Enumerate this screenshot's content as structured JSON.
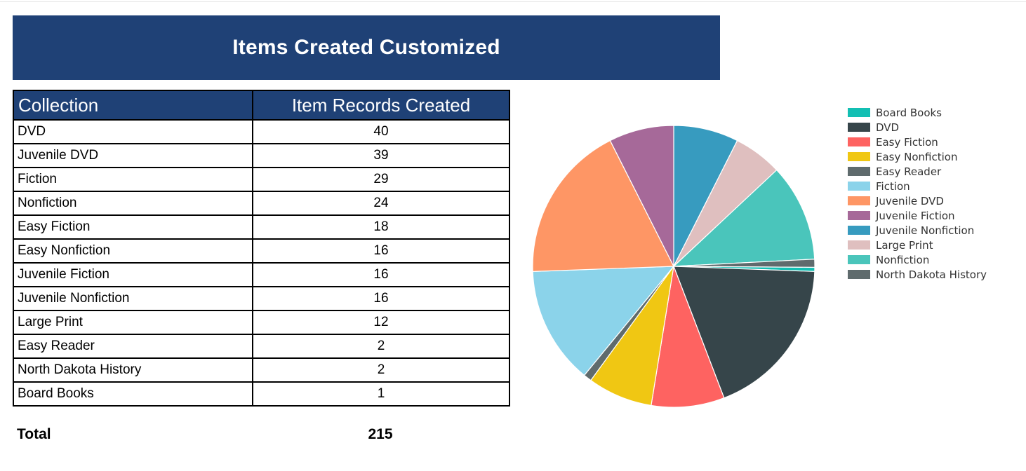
{
  "title": "Items Created Customized",
  "table": {
    "headers": [
      "Collection",
      "Item Records Created"
    ],
    "rows": [
      {
        "collection": "DVD",
        "count": "40"
      },
      {
        "collection": "Juvenile DVD",
        "count": "39"
      },
      {
        "collection": "Fiction",
        "count": "29"
      },
      {
        "collection": "Nonfiction",
        "count": "24"
      },
      {
        "collection": "Easy Fiction",
        "count": "18"
      },
      {
        "collection": "Easy Nonfiction",
        "count": "16"
      },
      {
        "collection": "Juvenile Fiction",
        "count": "16"
      },
      {
        "collection": "Juvenile Nonfiction",
        "count": "16"
      },
      {
        "collection": "Large Print",
        "count": "12"
      },
      {
        "collection": "Easy Reader",
        "count": "2"
      },
      {
        "collection": "North Dakota History",
        "count": "2"
      },
      {
        "collection": "Board Books",
        "count": "1"
      }
    ],
    "total_label": "Total",
    "total_value": "215"
  },
  "colors": {
    "header_bg": "#1f4176",
    "header_text": "#ffffff"
  },
  "chart_data": {
    "type": "pie",
    "legend_position": "right",
    "slices": [
      {
        "label": "Board Books",
        "value": 1,
        "color": "#13bfb3"
      },
      {
        "label": "DVD",
        "value": 40,
        "color": "#36454a"
      },
      {
        "label": "Easy Fiction",
        "value": 18,
        "color": "#fe6361"
      },
      {
        "label": "Easy Nonfiction",
        "value": 16,
        "color": "#f0c713"
      },
      {
        "label": "Easy Reader",
        "value": 2,
        "color": "#5f6b6d"
      },
      {
        "label": "Fiction",
        "value": 29,
        "color": "#8bd3ea"
      },
      {
        "label": "Juvenile DVD",
        "value": 39,
        "color": "#fe9665"
      },
      {
        "label": "Juvenile Fiction",
        "value": 16,
        "color": "#a66999"
      },
      {
        "label": "Juvenile Nonfiction",
        "value": 16,
        "color": "#379bbf"
      },
      {
        "label": "Large Print",
        "value": 12,
        "color": "#dfbfbf"
      },
      {
        "label": "Nonfiction",
        "value": 24,
        "color": "#4ac5bb"
      },
      {
        "label": "North Dakota History",
        "value": 2,
        "color": "#5f6b6d"
      }
    ]
  }
}
